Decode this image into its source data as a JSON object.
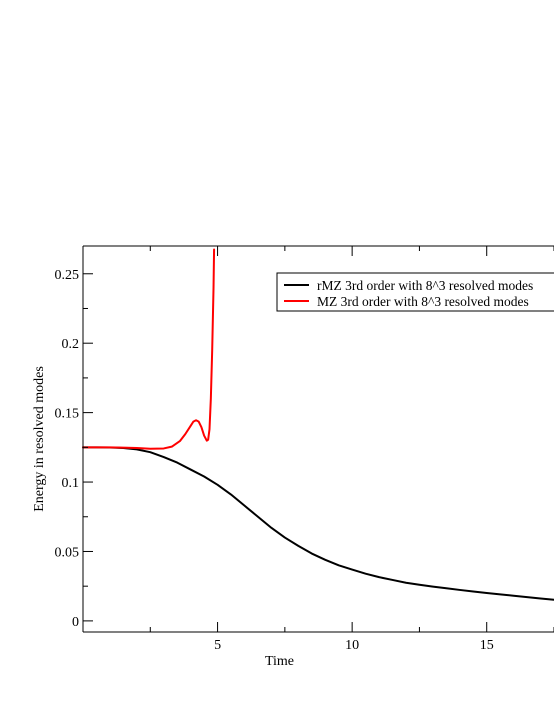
{
  "chart_data": {
    "type": "line",
    "xlabel": "Time",
    "ylabel": "Energy in resolved modes",
    "xlim": [
      0,
      17.5
    ],
    "ylim": [
      -0.008,
      0.27
    ],
    "x_ticks": [
      5,
      10,
      15
    ],
    "y_ticks": [
      0,
      0.05,
      0.1,
      0.15,
      0.2,
      0.25
    ],
    "y_tick_labels": [
      "0",
      "0.05",
      "0.1",
      "0.15",
      "0.2",
      "0.25"
    ],
    "grid": false,
    "legend_position": "top-right",
    "series": [
      {
        "name": "rMZ 3rd order with 8^3 resolved modes",
        "color": "#000000",
        "x": [
          0,
          0.5,
          1,
          1.5,
          2,
          2.5,
          3,
          3.5,
          4,
          4.5,
          5,
          5.5,
          6,
          6.5,
          7,
          7.5,
          8,
          8.5,
          9,
          9.5,
          10,
          10.5,
          11,
          11.5,
          12,
          12.5,
          13,
          13.5,
          14,
          14.5,
          15,
          15.5,
          16,
          16.5,
          17,
          17.5
        ],
        "y": [
          0.125,
          0.125,
          0.1249,
          0.1245,
          0.1235,
          0.1215,
          0.118,
          0.114,
          0.109,
          0.104,
          0.098,
          0.091,
          0.083,
          0.075,
          0.067,
          0.06,
          0.054,
          0.0485,
          0.044,
          0.04,
          0.037,
          0.034,
          0.0315,
          0.0295,
          0.0275,
          0.026,
          0.0247,
          0.0235,
          0.0223,
          0.0212,
          0.0201,
          0.0191,
          0.0181,
          0.0171,
          0.0161,
          0.0152
        ]
      },
      {
        "name": "MZ 3rd order with 8^3 resolved modes",
        "color": "#ff0000",
        "x": [
          0,
          1,
          2,
          2.5,
          3,
          3.3,
          3.6,
          3.8,
          4.0,
          4.1,
          4.2,
          4.3,
          4.4,
          4.5,
          4.6,
          4.65,
          4.7,
          4.75,
          4.8,
          4.85,
          4.87
        ],
        "y": [
          0.125,
          0.125,
          0.1245,
          0.124,
          0.1242,
          0.1255,
          0.1295,
          0.1345,
          0.1405,
          0.1435,
          0.1445,
          0.1435,
          0.1395,
          0.1335,
          0.1298,
          0.1305,
          0.138,
          0.16,
          0.195,
          0.24,
          0.2675
        ]
      }
    ]
  }
}
